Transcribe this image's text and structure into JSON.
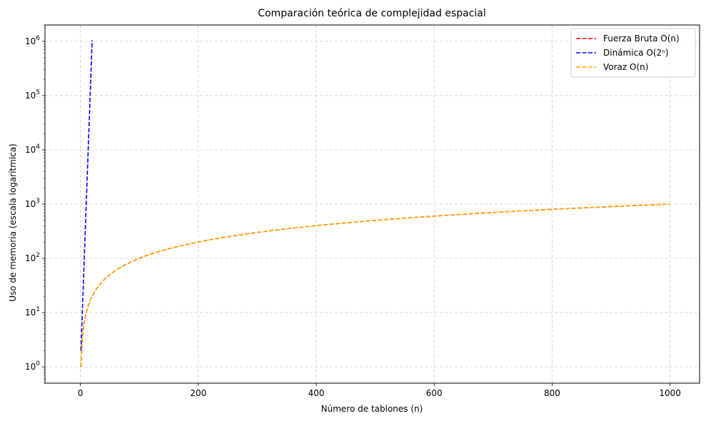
{
  "chart_data": {
    "type": "line",
    "title": "Comparación teórica de complejidad espacial",
    "xlabel": "Número de tablones (n)",
    "ylabel": "Uso de memoria (escala logarítmica)",
    "xlim": [
      -60,
      1050
    ],
    "ylim": [
      0.5,
      2000000
    ],
    "y_scale": "log",
    "grid": true,
    "grid_style": "dashed",
    "legend_position": "top-right",
    "x_ticks": [
      0,
      200,
      400,
      600,
      800,
      1000
    ],
    "x_tick_labels": [
      "0",
      "200",
      "400",
      "600",
      "800",
      "1000"
    ],
    "y_ticks": [
      1,
      10,
      100,
      1000,
      10000,
      100000,
      1000000
    ],
    "y_tick_labels": [
      {
        "base": "10",
        "exp": "0"
      },
      {
        "base": "10",
        "exp": "1"
      },
      {
        "base": "10",
        "exp": "2"
      },
      {
        "base": "10",
        "exp": "3"
      },
      {
        "base": "10",
        "exp": "4"
      },
      {
        "base": "10",
        "exp": "5"
      },
      {
        "base": "10",
        "exp": "6"
      }
    ],
    "series": [
      {
        "name": "Fuerza Bruta O(n)",
        "color": "#ff0000",
        "function": "n",
        "x_range": [
          1,
          1000
        ],
        "line_style": "dashed"
      },
      {
        "name": "Dinámica O(2ⁿ)",
        "color": "#0000ff",
        "function": "2^n",
        "x_range": [
          1,
          20
        ],
        "line_style": "dashed"
      },
      {
        "name": "Voraz O(n)",
        "color": "#ffa500",
        "function": "n",
        "x_range": [
          1,
          1000
        ],
        "line_style": "dashed"
      }
    ]
  }
}
